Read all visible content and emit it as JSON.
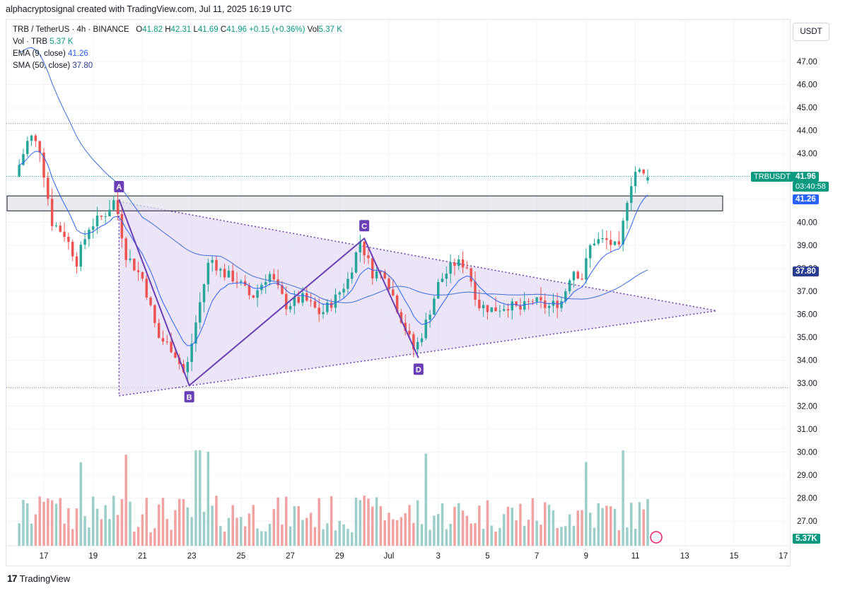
{
  "header": {
    "caption": "alphacryptosignal created with TradingView.com, Jul 11, 2025 16:19 UTC"
  },
  "legend": {
    "symbol": "TRB / TetherUS · 4h · BINANCE",
    "o_label": "O",
    "o_val": "41.82",
    "h_label": "H",
    "h_val": "42.31",
    "l_label": "L",
    "l_val": "41.69",
    "c_label": "C",
    "c_val": "41.96",
    "change": "+0.15 (+0.36%)",
    "vol_label": "Vol",
    "vol_val": "5.37 K",
    "vol_row_label": "Vol · TRB",
    "vol_row_val": "5.37 K",
    "ema_label": "EMA (9, close)",
    "ema_val": "41.26",
    "sma_label": "SMA (50, close)",
    "sma_val": "37.80"
  },
  "currency_button": "USDT",
  "price_tags": {
    "symbol_tag": "TRBUSDT",
    "last_price": "41.96",
    "countdown": "03:40:58",
    "ema_tag": "41.26",
    "sma_tag": "37.80",
    "volume_tag": "5.37K"
  },
  "footer": {
    "brand": "TradingView"
  },
  "colors": {
    "up": "#26a69a",
    "down": "#ef5350",
    "ema": "#2962ff",
    "sma": "#3a6fd8",
    "pattern": "#6a3fb5",
    "pattern_fill": "#e6dcf5",
    "vol_up": "#9ccfc9",
    "vol_down": "#f2a3a1"
  },
  "chart_data": {
    "type": "candlestick",
    "y_axis": {
      "ticks": [
        "47.00",
        "46.00",
        "45.00",
        "44.00",
        "43.00",
        "42.00",
        "41.00",
        "40.00",
        "39.00",
        "38.00",
        "37.00",
        "36.00",
        "35.00",
        "34.00",
        "33.00",
        "32.00",
        "31.00",
        "30.00",
        "29.00",
        "28.00",
        "27.00"
      ],
      "range": [
        26.2,
        48.2
      ]
    },
    "x_axis": {
      "labels": [
        "17",
        "19",
        "21",
        "23",
        "25",
        "27",
        "29",
        "Jul",
        "3",
        "5",
        "7",
        "9",
        "11",
        "13",
        "15",
        "17"
      ]
    },
    "pattern_points": [
      {
        "label": "A",
        "date": "Jun 20",
        "price": 41.0
      },
      {
        "label": "B",
        "date": "Jun 22",
        "price": 32.9
      },
      {
        "label": "C",
        "date": "Jun 30",
        "price": 39.3
      },
      {
        "label": "D",
        "date": "Jul 2",
        "price": 34.1
      }
    ],
    "resistance_zone": {
      "low": 40.5,
      "high": 41.15
    },
    "horizontal_levels": [
      44.3,
      42.0,
      32.8
    ],
    "indicators": [
      {
        "name": "EMA (9, close)",
        "last": 41.26
      },
      {
        "name": "SMA (50, close)",
        "last": 37.8
      }
    ],
    "last": {
      "open": 41.82,
      "high": 42.31,
      "low": 41.69,
      "close": 41.96,
      "volume": "5.37 K"
    }
  }
}
